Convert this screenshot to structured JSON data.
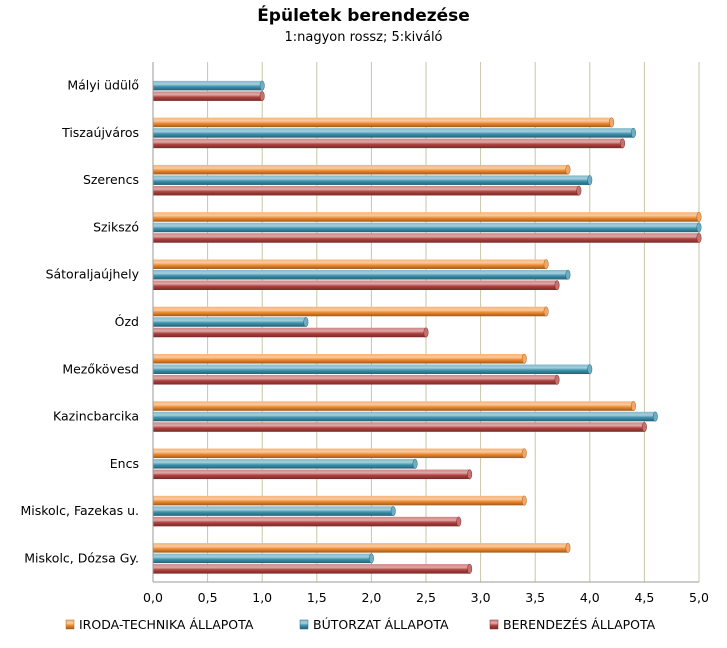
{
  "chart_data": {
    "type": "bar",
    "orientation": "horizontal",
    "title": "Épületek berendezése",
    "subtitle": "1:nagyon rossz;  5:kiváló",
    "xlabel": "",
    "ylabel": "",
    "xlim": [
      0,
      5
    ],
    "x_ticks": [
      "0,0",
      "0,5",
      "1,0",
      "1,5",
      "2,0",
      "2,5",
      "3,0",
      "3,5",
      "4,0",
      "4,5",
      "5,0"
    ],
    "grid": "vertical",
    "legend_position": "bottom",
    "categories": [
      "Mályi üdülő",
      "Tiszaújváros",
      "Szerencs",
      "Szikszó",
      "Sátoraljaújhely",
      "Ózd",
      "Mezőkövesd",
      "Kazincbarcika",
      "Encs",
      "Miskolc, Fazekas u.",
      "Miskolc, Dózsa Gy."
    ],
    "series": [
      {
        "name": "IRODA-TECHNIKA ÁLLAPOTA",
        "color": "#F08A2E",
        "values": [
          null,
          4.2,
          3.8,
          5.0,
          3.6,
          3.6,
          3.4,
          4.4,
          3.4,
          3.4,
          3.8
        ]
      },
      {
        "name": "BÚTORZAT ÁLLAPOTA",
        "color": "#3C93B0",
        "values": [
          1.0,
          4.4,
          4.0,
          5.0,
          3.8,
          1.4,
          4.0,
          4.6,
          2.4,
          2.2,
          2.0
        ]
      },
      {
        "name": "BERENDEZÉS  ÁLLAPOTA",
        "color": "#B2413E",
        "values": [
          1.0,
          4.3,
          3.9,
          5.0,
          3.7,
          2.5,
          3.7,
          4.5,
          2.9,
          2.8,
          2.9
        ]
      }
    ]
  }
}
